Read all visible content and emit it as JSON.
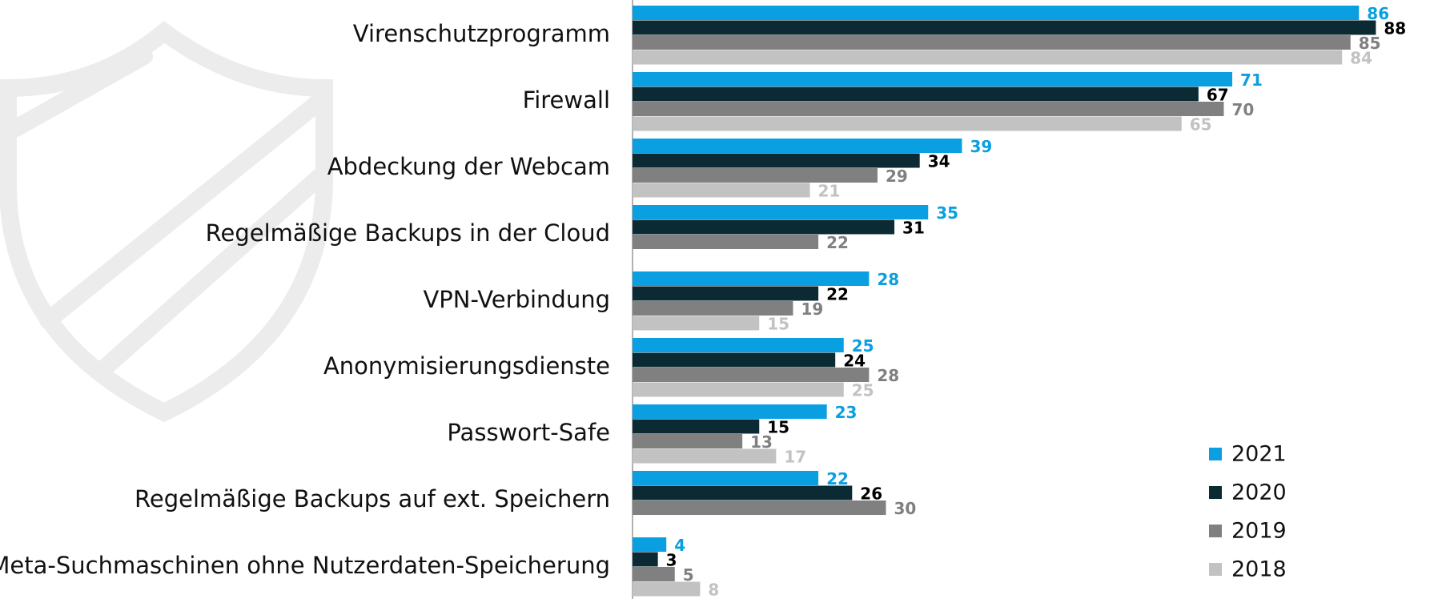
{
  "chart_data": {
    "type": "bar",
    "orientation": "horizontal",
    "categories": [
      "Virenschutzprogramm",
      "Firewall",
      "Abdeckung der Webcam",
      "Regelmäßige Backups in der Cloud",
      "VPN-Verbindung",
      "Anonymisierungsdienste",
      "Passwort-Safe",
      "Regelmäßige Backups auf ext. Speichern",
      "Meta-Suchmaschinen ohne Nutzerdaten-Speicherung"
    ],
    "series": [
      {
        "name": "2021",
        "color": "#0a9fe0",
        "values": [
          86,
          71,
          39,
          35,
          28,
          25,
          23,
          22,
          4
        ]
      },
      {
        "name": "2020",
        "color": "#0c2a33",
        "values": [
          88,
          67,
          34,
          31,
          22,
          24,
          15,
          26,
          3
        ]
      },
      {
        "name": "2019",
        "color": "#808080",
        "values": [
          85,
          70,
          29,
          22,
          19,
          28,
          13,
          30,
          5
        ]
      },
      {
        "name": "2018",
        "color": "#c2c2c2",
        "values": [
          84,
          65,
          21,
          null,
          15,
          25,
          17,
          null,
          8
        ]
      }
    ],
    "legend": "bottom-right"
  }
}
